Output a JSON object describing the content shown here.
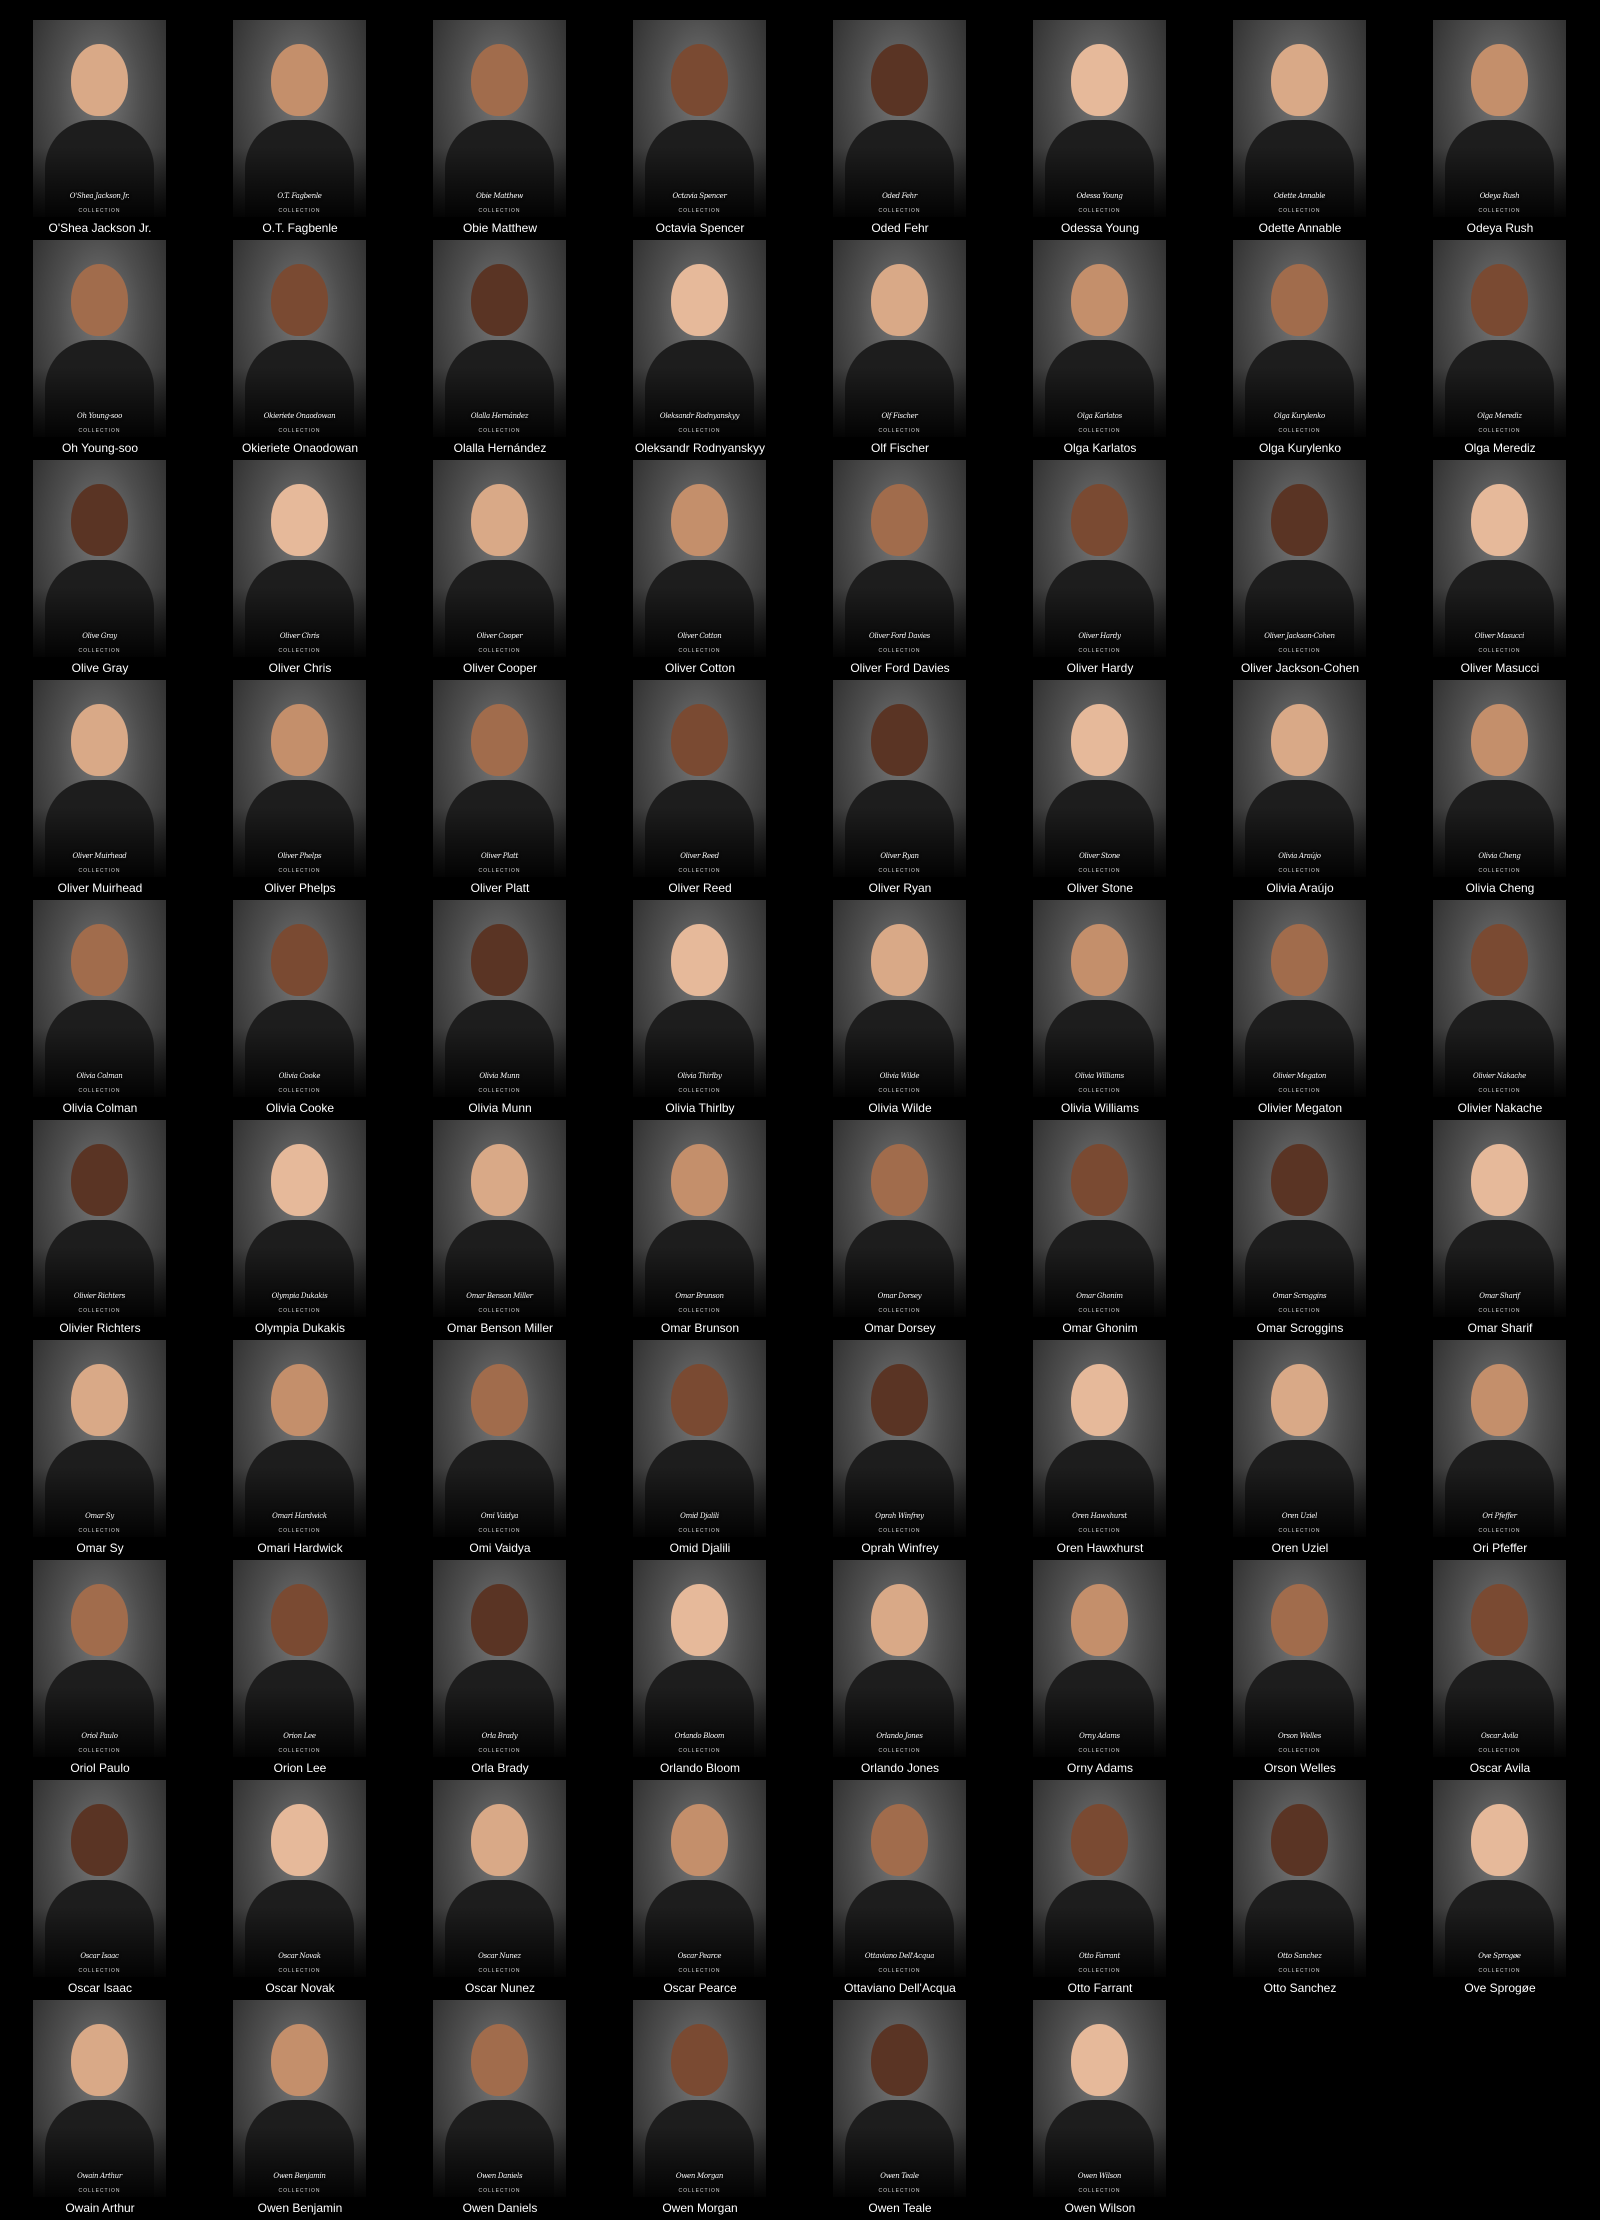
{
  "collection_tag": "COLLECTION",
  "skin_tones": [
    "#d9a987",
    "#c48f6b",
    "#a16c4c",
    "#7a4a32",
    "#5a3424",
    "#e6b99a"
  ],
  "cards": [
    {
      "name": "O'Shea Jackson Jr."
    },
    {
      "name": "O.T. Fagbenle"
    },
    {
      "name": "Obie Matthew"
    },
    {
      "name": "Octavia Spencer"
    },
    {
      "name": "Oded Fehr"
    },
    {
      "name": "Odessa Young"
    },
    {
      "name": "Odette Annable"
    },
    {
      "name": "Odeya Rush"
    },
    {
      "name": "Oh Young-soo"
    },
    {
      "name": "Okieriete Onaodowan"
    },
    {
      "name": "Olalla Hernández"
    },
    {
      "name": "Oleksandr Rodnyanskyy"
    },
    {
      "name": "Olf Fischer"
    },
    {
      "name": "Olga Karlatos"
    },
    {
      "name": "Olga Kurylenko"
    },
    {
      "name": "Olga Merediz"
    },
    {
      "name": "Olive Gray"
    },
    {
      "name": "Oliver Chris"
    },
    {
      "name": "Oliver Cooper"
    },
    {
      "name": "Oliver Cotton"
    },
    {
      "name": "Oliver Ford Davies"
    },
    {
      "name": "Oliver Hardy"
    },
    {
      "name": "Oliver Jackson-Cohen"
    },
    {
      "name": "Oliver Masucci"
    },
    {
      "name": "Oliver Muirhead"
    },
    {
      "name": "Oliver Phelps"
    },
    {
      "name": "Oliver Platt"
    },
    {
      "name": "Oliver Reed"
    },
    {
      "name": "Oliver Ryan"
    },
    {
      "name": "Oliver Stone"
    },
    {
      "name": "Olivia Araújo"
    },
    {
      "name": "Olivia Cheng"
    },
    {
      "name": "Olivia Colman"
    },
    {
      "name": "Olivia Cooke"
    },
    {
      "name": "Olivia Munn"
    },
    {
      "name": "Olivia Thirlby"
    },
    {
      "name": "Olivia Wilde"
    },
    {
      "name": "Olivia Williams"
    },
    {
      "name": "Olivier Megaton"
    },
    {
      "name": "Olivier Nakache"
    },
    {
      "name": "Olivier Richters"
    },
    {
      "name": "Olympia Dukakis"
    },
    {
      "name": "Omar Benson Miller"
    },
    {
      "name": "Omar Brunson"
    },
    {
      "name": "Omar Dorsey"
    },
    {
      "name": "Omar Ghonim"
    },
    {
      "name": "Omar Scroggins"
    },
    {
      "name": "Omar Sharif"
    },
    {
      "name": "Omar Sy"
    },
    {
      "name": "Omari Hardwick"
    },
    {
      "name": "Omi Vaidya"
    },
    {
      "name": "Omid Djalili"
    },
    {
      "name": "Oprah Winfrey"
    },
    {
      "name": "Oren Hawxhurst"
    },
    {
      "name": "Oren Uziel"
    },
    {
      "name": "Ori Pfeffer"
    },
    {
      "name": "Oriol Paulo"
    },
    {
      "name": "Orion Lee"
    },
    {
      "name": "Orla Brady"
    },
    {
      "name": "Orlando Bloom"
    },
    {
      "name": "Orlando Jones"
    },
    {
      "name": "Orny Adams"
    },
    {
      "name": "Orson Welles"
    },
    {
      "name": "Oscar Avila"
    },
    {
      "name": "Oscar Isaac"
    },
    {
      "name": "Oscar Novak"
    },
    {
      "name": "Oscar Nunez"
    },
    {
      "name": "Oscar Pearce"
    },
    {
      "name": "Ottaviano Dell'Acqua"
    },
    {
      "name": "Otto Farrant"
    },
    {
      "name": "Otto Sanchez"
    },
    {
      "name": "Ove Sprogøe"
    },
    {
      "name": "Owain Arthur"
    },
    {
      "name": "Owen Benjamin"
    },
    {
      "name": "Owen Daniels"
    },
    {
      "name": "Owen Morgan"
    },
    {
      "name": "Owen Teale"
    },
    {
      "name": "Owen Wilson"
    }
  ]
}
